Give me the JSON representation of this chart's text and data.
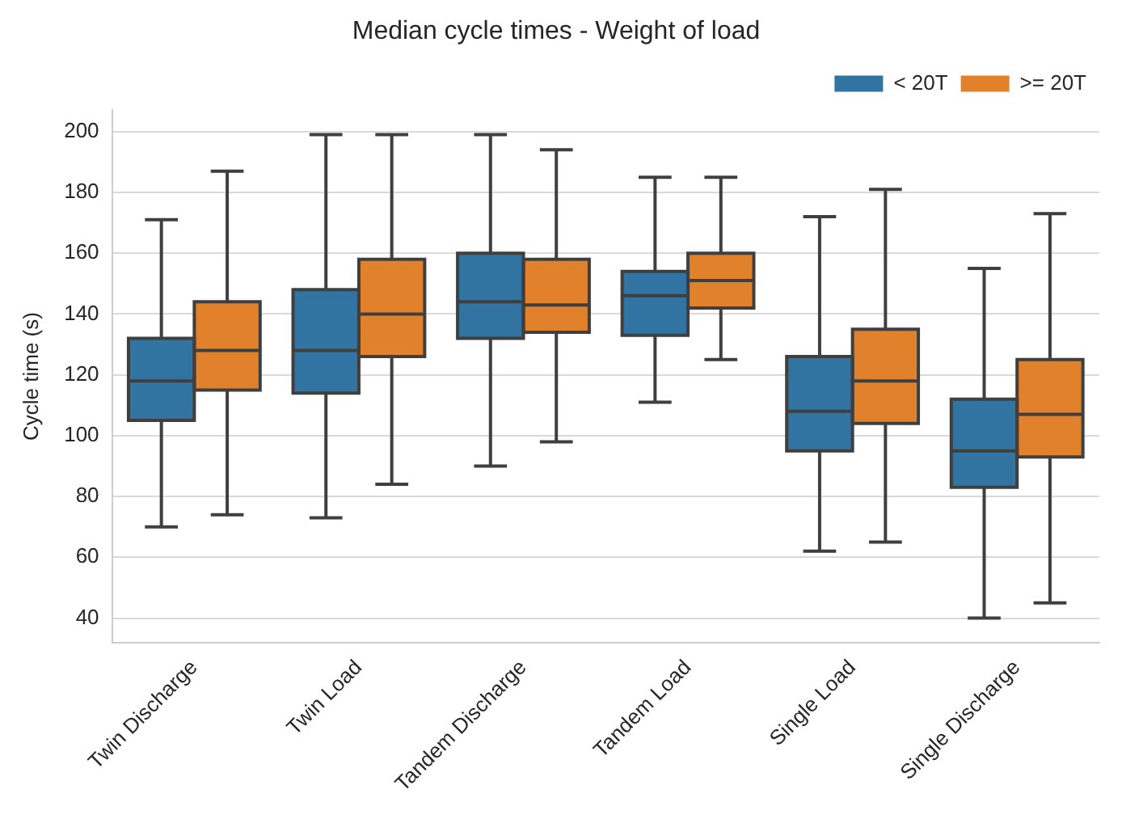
{
  "chart_data": {
    "type": "box",
    "title": "Median cycle times - Weight of load",
    "ylabel": "Cycle time (s)",
    "categories": [
      "Twin Discharge",
      "Twin Load",
      "Tandem Discharge",
      "Tandem Load",
      "Single Load",
      "Single Discharge"
    ],
    "ylim": [
      32,
      207
    ],
    "yticks": [
      40,
      60,
      80,
      100,
      120,
      140,
      160,
      180,
      200
    ],
    "grid": "y",
    "legend": "top right",
    "series": [
      {
        "name": "< 20T",
        "color": "#3274a1",
        "boxes": [
          {
            "low": 70,
            "q1": 105,
            "median": 118,
            "q3": 132,
            "high": 171
          },
          {
            "low": 73,
            "q1": 114,
            "median": 128,
            "q3": 148,
            "high": 199
          },
          {
            "low": 90,
            "q1": 132,
            "median": 144,
            "q3": 160,
            "high": 199
          },
          {
            "low": 111,
            "q1": 133,
            "median": 146,
            "q3": 154,
            "high": 185
          },
          {
            "low": 62,
            "q1": 95,
            "median": 108,
            "q3": 126,
            "high": 172
          },
          {
            "low": 40,
            "q1": 83,
            "median": 95,
            "q3": 112,
            "high": 155
          }
        ]
      },
      {
        "name": ">= 20T",
        "color": "#e1812c",
        "boxes": [
          {
            "low": 74,
            "q1": 115,
            "median": 128,
            "q3": 144,
            "high": 187
          },
          {
            "low": 84,
            "q1": 126,
            "median": 140,
            "q3": 158,
            "high": 199
          },
          {
            "low": 98,
            "q1": 134,
            "median": 143,
            "q3": 158,
            "high": 194
          },
          {
            "low": 125,
            "q1": 142,
            "median": 151,
            "q3": 160,
            "high": 185
          },
          {
            "low": 65,
            "q1": 104,
            "median": 118,
            "q3": 135,
            "high": 181
          },
          {
            "low": 45,
            "q1": 93,
            "median": 107,
            "q3": 125,
            "high": 173
          }
        ]
      }
    ]
  }
}
